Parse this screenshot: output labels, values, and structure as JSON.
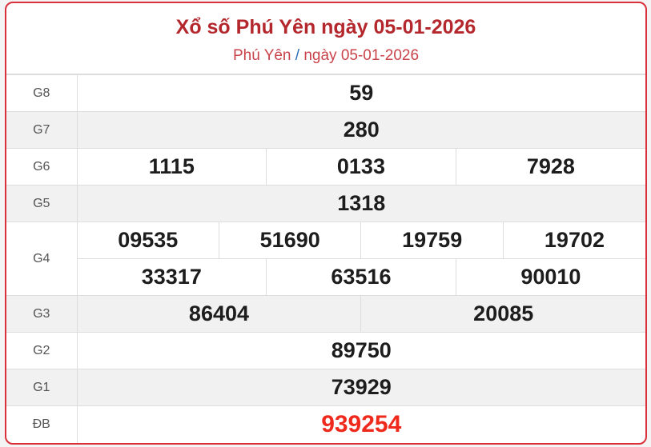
{
  "header": {
    "title": "Xổ số Phú Yên ngày 05-01-2026",
    "breadcrumb_province": "Phú Yên",
    "breadcrumb_sep": "/",
    "breadcrumb_date": "ngày 05-01-2026"
  },
  "prizes": {
    "g8": {
      "label": "G8",
      "values": [
        "59"
      ]
    },
    "g7": {
      "label": "G7",
      "values": [
        "280"
      ]
    },
    "g6": {
      "label": "G6",
      "values": [
        "1115",
        "0133",
        "7928"
      ]
    },
    "g5": {
      "label": "G5",
      "values": [
        "1318"
      ]
    },
    "g4": {
      "label": "G4",
      "values": [
        "09535",
        "51690",
        "19759",
        "19702",
        "33317",
        "63516",
        "90010"
      ]
    },
    "g3": {
      "label": "G3",
      "values": [
        "86404",
        "20085"
      ]
    },
    "g2": {
      "label": "G2",
      "values": [
        "89750"
      ]
    },
    "g1": {
      "label": "G1",
      "values": [
        "73929"
      ]
    },
    "db": {
      "label": "ĐB",
      "values": [
        "939254"
      ]
    }
  },
  "colors": {
    "accent": "#b3272d",
    "special": "#ef2a1c"
  }
}
